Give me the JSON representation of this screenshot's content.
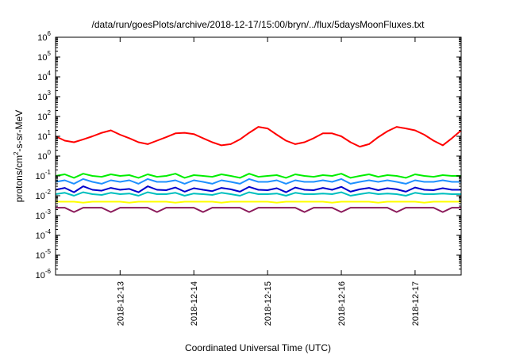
{
  "chart_data": {
    "type": "line",
    "title": "/data/run/goesPlots/archive/2018-12-17/15:00/bryn/../flux/5daysMoonFluxes.txt",
    "xlabel": "Coordinated Universal Time (UTC)",
    "ylabel": "protons/cm²-s-sr-MeV",
    "yscale": "log",
    "ylim": [
      1e-06,
      1000000.0
    ],
    "xlim": [
      "2018-12-12T03:00",
      "2018-12-17T15:00"
    ],
    "x_ticks": [
      "2018-12-13",
      "2018-12-14",
      "2018-12-15",
      "2018-12-16",
      "2018-12-17"
    ],
    "y_ticks": [
      {
        "base": "10",
        "exp": "6"
      },
      {
        "base": "10",
        "exp": "5"
      },
      {
        "base": "10",
        "exp": "4"
      },
      {
        "base": "10",
        "exp": "3"
      },
      {
        "base": "10",
        "exp": "2"
      },
      {
        "base": "10",
        "exp": "1"
      },
      {
        "base": "10",
        "exp": "0"
      },
      {
        "base": "10",
        "exp": "-1"
      },
      {
        "base": "10",
        "exp": "-2"
      },
      {
        "base": "10",
        "exp": "-3"
      },
      {
        "base": "10",
        "exp": "-4"
      },
      {
        "base": "10",
        "exp": "-5"
      },
      {
        "base": "10",
        "exp": "-6"
      }
    ],
    "grid": false,
    "x": [
      "2018-12-12T03:00",
      "2018-12-12T06:00",
      "2018-12-12T09:00",
      "2018-12-12T12:00",
      "2018-12-12T15:00",
      "2018-12-12T18:00",
      "2018-12-12T21:00",
      "2018-12-13T00:00",
      "2018-12-13T03:00",
      "2018-12-13T06:00",
      "2018-12-13T09:00",
      "2018-12-13T12:00",
      "2018-12-13T15:00",
      "2018-12-13T18:00",
      "2018-12-13T21:00",
      "2018-12-14T00:00",
      "2018-12-14T03:00",
      "2018-12-14T06:00",
      "2018-12-14T09:00",
      "2018-12-14T12:00",
      "2018-12-14T15:00",
      "2018-12-14T18:00",
      "2018-12-14T21:00",
      "2018-12-15T00:00",
      "2018-12-15T03:00",
      "2018-12-15T06:00",
      "2018-12-15T09:00",
      "2018-12-15T12:00",
      "2018-12-15T15:00",
      "2018-12-15T18:00",
      "2018-12-15T21:00",
      "2018-12-16T00:00",
      "2018-12-16T03:00",
      "2018-12-16T06:00",
      "2018-12-16T09:00",
      "2018-12-16T12:00",
      "2018-12-16T15:00",
      "2018-12-16T18:00",
      "2018-12-16T21:00",
      "2018-12-17T00:00",
      "2018-12-17T03:00",
      "2018-12-17T06:00",
      "2018-12-17T09:00",
      "2018-12-17T12:00",
      "2018-12-17T15:00"
    ],
    "series": [
      {
        "color": "#ff0000",
        "values": [
          10,
          6,
          5,
          7,
          10,
          15,
          20,
          12,
          8,
          5,
          4,
          6,
          9,
          14,
          15,
          13,
          8,
          5,
          3.5,
          4,
          7,
          15,
          30,
          25,
          12,
          6,
          4,
          5,
          8,
          14,
          14,
          10,
          5,
          3,
          4,
          9,
          18,
          30,
          25,
          20,
          12,
          6,
          3.5,
          8,
          20
        ]
      },
      {
        "color": "#00ee00",
        "values": [
          0.1,
          0.12,
          0.08,
          0.13,
          0.1,
          0.09,
          0.12,
          0.1,
          0.11,
          0.08,
          0.12,
          0.09,
          0.1,
          0.13,
          0.08,
          0.11,
          0.1,
          0.09,
          0.12,
          0.1,
          0.08,
          0.13,
          0.09,
          0.1,
          0.11,
          0.08,
          0.12,
          0.1,
          0.09,
          0.11,
          0.1,
          0.13,
          0.08,
          0.1,
          0.12,
          0.09,
          0.11,
          0.1,
          0.08,
          0.12,
          0.1,
          0.09,
          0.11,
          0.1,
          0.1
        ]
      },
      {
        "color": "#1e90ff",
        "values": [
          0.05,
          0.06,
          0.04,
          0.07,
          0.05,
          0.04,
          0.06,
          0.05,
          0.06,
          0.04,
          0.07,
          0.05,
          0.05,
          0.06,
          0.04,
          0.06,
          0.05,
          0.04,
          0.06,
          0.05,
          0.04,
          0.07,
          0.05,
          0.05,
          0.06,
          0.04,
          0.06,
          0.05,
          0.05,
          0.06,
          0.05,
          0.07,
          0.04,
          0.05,
          0.06,
          0.05,
          0.06,
          0.05,
          0.04,
          0.06,
          0.05,
          0.05,
          0.06,
          0.05,
          0.05
        ]
      },
      {
        "color": "#0000cc",
        "values": [
          0.02,
          0.025,
          0.015,
          0.03,
          0.02,
          0.018,
          0.025,
          0.02,
          0.022,
          0.015,
          0.03,
          0.02,
          0.019,
          0.026,
          0.016,
          0.024,
          0.02,
          0.017,
          0.025,
          0.021,
          0.016,
          0.028,
          0.02,
          0.019,
          0.024,
          0.015,
          0.026,
          0.02,
          0.019,
          0.025,
          0.02,
          0.028,
          0.016,
          0.021,
          0.025,
          0.019,
          0.024,
          0.021,
          0.016,
          0.026,
          0.02,
          0.019,
          0.024,
          0.02,
          0.02
        ]
      },
      {
        "color": "#00bfbf",
        "values": [
          0.012,
          0.014,
          0.01,
          0.015,
          0.012,
          0.011,
          0.014,
          0.012,
          0.013,
          0.01,
          0.015,
          0.012,
          0.012,
          0.014,
          0.01,
          0.013,
          0.012,
          0.011,
          0.014,
          0.012,
          0.01,
          0.015,
          0.012,
          0.012,
          0.013,
          0.01,
          0.014,
          0.012,
          0.012,
          0.013,
          0.012,
          0.015,
          0.01,
          0.012,
          0.014,
          0.012,
          0.013,
          0.012,
          0.01,
          0.014,
          0.012,
          0.012,
          0.013,
          0.012,
          0.012
        ]
      },
      {
        "color": "#ffff00",
        "values": [
          0.005,
          0.005,
          0.005,
          0.0045,
          0.005,
          0.005,
          0.005,
          0.005,
          0.0045,
          0.005,
          0.005,
          0.005,
          0.005,
          0.0045,
          0.005,
          0.005,
          0.005,
          0.005,
          0.0045,
          0.005,
          0.005,
          0.005,
          0.005,
          0.005,
          0.0045,
          0.005,
          0.005,
          0.005,
          0.005,
          0.005,
          0.0045,
          0.005,
          0.005,
          0.005,
          0.005,
          0.0045,
          0.005,
          0.005,
          0.005,
          0.005,
          0.0045,
          0.005,
          0.005,
          0.005,
          0.005
        ]
      },
      {
        "color": "#8b1a5a",
        "values": [
          0.0025,
          0.0025,
          0.0015,
          0.0025,
          0.0025,
          0.0025,
          0.0015,
          0.0025,
          0.0025,
          0.0025,
          0.0025,
          0.0015,
          0.0025,
          0.0025,
          0.0025,
          0.0025,
          0.0015,
          0.0025,
          0.0025,
          0.0025,
          0.0025,
          0.0015,
          0.0025,
          0.0025,
          0.0025,
          0.0025,
          0.0025,
          0.0015,
          0.0025,
          0.0025,
          0.0025,
          0.0015,
          0.0025,
          0.0025,
          0.0025,
          0.0025,
          0.0025,
          0.0015,
          0.0025,
          0.0025,
          0.0025,
          0.0025,
          0.0015,
          0.0025,
          0.0025
        ]
      }
    ]
  }
}
